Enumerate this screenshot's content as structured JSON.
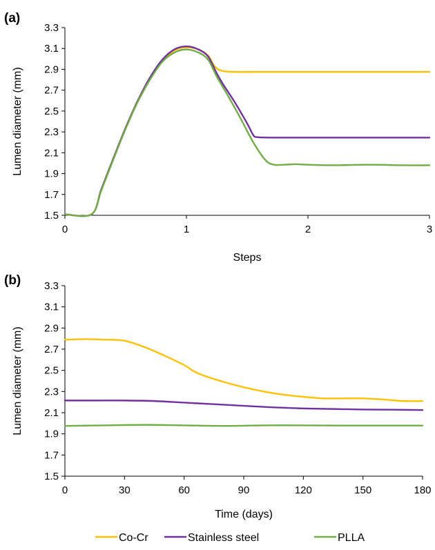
{
  "chart_data": [
    {
      "type": "line",
      "panel_label": "(a)",
      "xlabel": "Steps",
      "ylabel": "Lumen diameter (mm)",
      "xlim": [
        0,
        3
      ],
      "ylim": [
        1.5,
        3.3
      ],
      "x_ticks": [
        0,
        1,
        2,
        3
      ],
      "x_tick_labels": [
        "0",
        "1",
        "2",
        "3"
      ],
      "y_ticks": [
        1.5,
        1.7,
        1.9,
        2.1,
        2.3,
        2.5,
        2.7,
        2.9,
        3.1,
        3.3
      ],
      "y_tick_labels": [
        "1.5",
        "1.7",
        "1.9",
        "2.1",
        "2.3",
        "2.5",
        "2.7",
        "2.9",
        "3.1",
        "3.3"
      ],
      "grid": false,
      "series": [
        {
          "name": "Co-Cr",
          "color": "#FFC000",
          "x": [
            0,
            0.22,
            0.3,
            0.4,
            0.5,
            0.6,
            0.7,
            0.8,
            0.9,
            1.0,
            1.1,
            1.18,
            1.22,
            1.26,
            1.32,
            1.4,
            1.6,
            2.0,
            2.5,
            3.0
          ],
          "y": [
            1.51,
            1.51,
            1.75,
            2.05,
            2.34,
            2.6,
            2.82,
            2.98,
            3.08,
            3.11,
            3.09,
            3.03,
            2.95,
            2.9,
            2.88,
            2.875,
            2.875,
            2.875,
            2.875,
            2.875
          ]
        },
        {
          "name": "Stainless steel",
          "color": "#7030A0",
          "x": [
            0,
            0.22,
            0.3,
            0.4,
            0.5,
            0.6,
            0.7,
            0.8,
            0.9,
            1.0,
            1.1,
            1.18,
            1.25,
            1.3,
            1.4,
            1.5,
            1.55,
            1.58,
            1.7,
            2.0,
            2.5,
            3.0
          ],
          "y": [
            1.51,
            1.51,
            1.75,
            2.05,
            2.34,
            2.6,
            2.82,
            2.99,
            3.09,
            3.12,
            3.09,
            3.02,
            2.86,
            2.76,
            2.58,
            2.38,
            2.27,
            2.25,
            2.245,
            2.245,
            2.245,
            2.245
          ]
        },
        {
          "name": "PLLA",
          "color": "#70AD47",
          "x": [
            0,
            0.22,
            0.3,
            0.4,
            0.5,
            0.6,
            0.7,
            0.8,
            0.9,
            1.0,
            1.1,
            1.18,
            1.25,
            1.35,
            1.45,
            1.55,
            1.65,
            1.72,
            1.8,
            1.9,
            2.0,
            2.2,
            2.5,
            2.8,
            3.0
          ],
          "y": [
            1.51,
            1.51,
            1.74,
            2.04,
            2.33,
            2.59,
            2.8,
            2.97,
            3.06,
            3.09,
            3.06,
            2.99,
            2.83,
            2.63,
            2.42,
            2.2,
            2.03,
            1.985,
            1.985,
            1.99,
            1.985,
            1.98,
            1.985,
            1.98,
            1.98
          ]
        }
      ]
    },
    {
      "type": "line",
      "panel_label": "(b)",
      "xlabel": "Time (days)",
      "ylabel": "Lumen diameter (mm)",
      "xlim": [
        0,
        180
      ],
      "ylim": [
        1.5,
        3.3
      ],
      "x_ticks": [
        0,
        30,
        60,
        90,
        120,
        150,
        180
      ],
      "x_tick_labels": [
        "0",
        "30",
        "60",
        "90",
        "120",
        "150",
        "180"
      ],
      "y_ticks": [
        1.5,
        1.7,
        1.9,
        2.1,
        2.3,
        2.5,
        2.7,
        2.9,
        3.1,
        3.3
      ],
      "y_tick_labels": [
        "1.5",
        "1.7",
        "1.9",
        "2.1",
        "2.3",
        "2.5",
        "2.7",
        "2.9",
        "3.1",
        "3.3"
      ],
      "grid": false,
      "series": [
        {
          "name": "Co-Cr",
          "color": "#FFC000",
          "x": [
            0,
            10,
            20,
            30,
            40,
            50,
            60,
            65,
            70,
            80,
            90,
            100,
            110,
            120,
            130,
            140,
            150,
            160,
            170,
            180
          ],
          "y": [
            2.79,
            2.795,
            2.79,
            2.78,
            2.72,
            2.64,
            2.55,
            2.49,
            2.45,
            2.39,
            2.34,
            2.3,
            2.27,
            2.25,
            2.235,
            2.235,
            2.235,
            2.225,
            2.21,
            2.21
          ]
        },
        {
          "name": "Stainless steel",
          "color": "#7030A0",
          "x": [
            0,
            15,
            30,
            45,
            60,
            75,
            90,
            105,
            120,
            135,
            150,
            165,
            180
          ],
          "y": [
            2.215,
            2.215,
            2.215,
            2.21,
            2.195,
            2.18,
            2.165,
            2.15,
            2.14,
            2.135,
            2.13,
            2.128,
            2.125
          ]
        },
        {
          "name": "PLLA",
          "color": "#70AD47",
          "x": [
            0,
            20,
            40,
            60,
            80,
            100,
            120,
            140,
            160,
            180
          ],
          "y": [
            1.975,
            1.98,
            1.985,
            1.98,
            1.975,
            1.98,
            1.98,
            1.978,
            1.978,
            1.978
          ]
        }
      ]
    }
  ],
  "legend": {
    "placement": "bottom",
    "items": [
      {
        "label": "Co-Cr",
        "color": "#FFC000"
      },
      {
        "label": "Stainless steel",
        "color": "#7030A0"
      },
      {
        "label": "PLLA",
        "color": "#70AD47"
      }
    ]
  }
}
